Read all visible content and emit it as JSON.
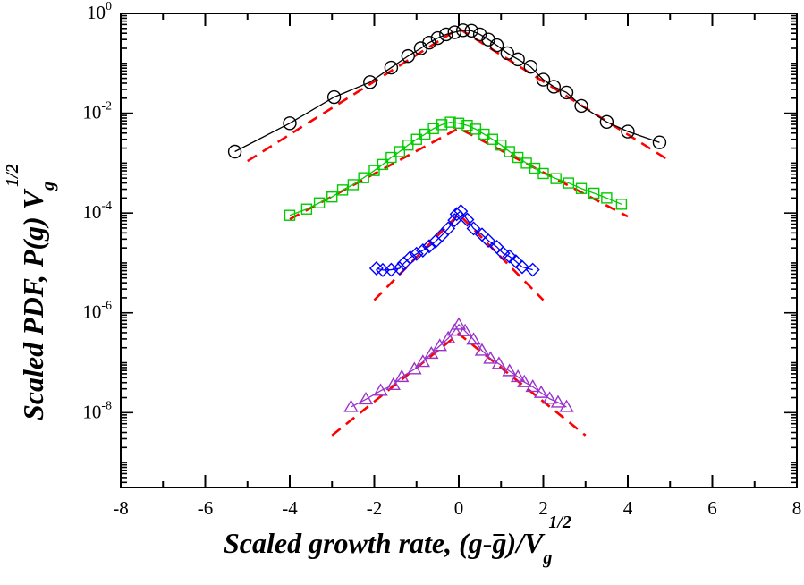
{
  "chart_data": {
    "type": "scatter",
    "title": "",
    "xlabel": {
      "main": "Scaled growth rate, (g-",
      "gbar": "g",
      "after": ")/V",
      "sub": "g",
      "sup": "1/2"
    },
    "ylabel": {
      "main": "Scaled PDF, P(g) V",
      "sub": "g",
      "sup": "1/2"
    },
    "xlim": [
      -8,
      8
    ],
    "ylim_log10": [
      -9.5,
      0
    ],
    "y_scale": "log",
    "x_ticks": [
      "-8",
      "-6",
      "-4",
      "-2",
      "0",
      "2",
      "4",
      "6",
      "8"
    ],
    "y_ticks": [
      {
        "base": "10",
        "exp": "0",
        "value": 0
      },
      {
        "base": "10",
        "exp": "-2",
        "value": -2
      },
      {
        "base": "10",
        "exp": "-4",
        "value": -4
      },
      {
        "base": "10",
        "exp": "-6",
        "value": -6
      },
      {
        "base": "10",
        "exp": "-8",
        "value": -8
      }
    ],
    "grid": false,
    "series": [
      {
        "marker": "circle",
        "color": "#000000",
        "connect": true,
        "points": [
          [
            -5.3,
            0.0017
          ],
          [
            -4.0,
            0.0063
          ],
          [
            -2.95,
            0.021
          ],
          [
            -2.1,
            0.042
          ],
          [
            -1.6,
            0.082
          ],
          [
            -1.2,
            0.14
          ],
          [
            -0.9,
            0.2
          ],
          [
            -0.7,
            0.26
          ],
          [
            -0.5,
            0.32
          ],
          [
            -0.3,
            0.38
          ],
          [
            -0.1,
            0.42
          ],
          [
            0.1,
            0.46
          ],
          [
            0.3,
            0.45
          ],
          [
            0.5,
            0.38
          ],
          [
            0.7,
            0.3
          ],
          [
            0.9,
            0.23
          ],
          [
            1.15,
            0.16
          ],
          [
            1.4,
            0.12
          ],
          [
            1.7,
            0.085
          ],
          [
            2.0,
            0.047
          ],
          [
            2.25,
            0.034
          ],
          [
            2.55,
            0.026
          ],
          [
            2.9,
            0.014
          ],
          [
            3.5,
            0.0067
          ],
          [
            4.0,
            0.0043
          ],
          [
            4.75,
            0.0026
          ]
        ]
      },
      {
        "marker": "square",
        "color": "#00cc00",
        "connect": true,
        "points": [
          [
            -4.0,
            9e-05
          ],
          [
            -3.6,
            0.00012
          ],
          [
            -3.3,
            0.00016
          ],
          [
            -3.0,
            0.00021
          ],
          [
            -2.75,
            0.00029
          ],
          [
            -2.5,
            0.00037
          ],
          [
            -2.25,
            0.00051
          ],
          [
            -2.0,
            0.00071
          ],
          [
            -1.8,
            0.00094
          ],
          [
            -1.6,
            0.0013
          ],
          [
            -1.4,
            0.0017
          ],
          [
            -1.2,
            0.0023
          ],
          [
            -1.0,
            0.003
          ],
          [
            -0.8,
            0.0038
          ],
          [
            -0.6,
            0.0049
          ],
          [
            -0.4,
            0.0059
          ],
          [
            -0.2,
            0.0066
          ],
          [
            0.0,
            0.0063
          ],
          [
            0.2,
            0.0057
          ],
          [
            0.4,
            0.0048
          ],
          [
            0.6,
            0.0038
          ],
          [
            0.8,
            0.003
          ],
          [
            1.0,
            0.0023
          ],
          [
            1.2,
            0.0017
          ],
          [
            1.4,
            0.0013
          ],
          [
            1.6,
            0.001
          ],
          [
            1.8,
            0.00079
          ],
          [
            2.0,
            0.00062
          ],
          [
            2.3,
            0.00049
          ],
          [
            2.6,
            0.0004
          ],
          [
            2.9,
            0.00031
          ],
          [
            3.2,
            0.00025
          ],
          [
            3.5,
            0.0002
          ],
          [
            3.85,
            0.00015
          ]
        ]
      },
      {
        "marker": "diamond",
        "color": "#0000ff",
        "connect": true,
        "points": [
          [
            -1.95,
            7.8e-06
          ],
          [
            -1.8,
            7.2e-06
          ],
          [
            -1.6,
            7.3e-06
          ],
          [
            -1.4,
            7.8e-06
          ],
          [
            -1.3,
            9.8e-06
          ],
          [
            -1.15,
            1.28e-05
          ],
          [
            -1.0,
            1.52e-05
          ],
          [
            -0.85,
            1.78e-05
          ],
          [
            -0.7,
            2.15e-05
          ],
          [
            -0.55,
            2.7e-05
          ],
          [
            -0.4,
            3.6e-05
          ],
          [
            -0.25,
            4.9e-05
          ],
          [
            -0.1,
            7.2e-05
          ],
          [
            -0.05,
            9.5e-05
          ],
          [
            0.05,
            0.000109
          ],
          [
            0.2,
            7.4e-05
          ],
          [
            0.35,
            4.9e-05
          ],
          [
            0.55,
            3.7e-05
          ],
          [
            0.7,
            2.8e-05
          ],
          [
            0.9,
            2.1e-05
          ],
          [
            1.05,
            1.56e-05
          ],
          [
            1.2,
            1.35e-05
          ],
          [
            1.35,
            1.08e-05
          ],
          [
            1.5,
            8.3e-06
          ],
          [
            1.75,
            7.3e-06
          ]
        ]
      },
      {
        "marker": "triangle",
        "color": "#9933cc",
        "connect": true,
        "points": [
          [
            -2.55,
            1.3e-08
          ],
          [
            -2.2,
            1.85e-08
          ],
          [
            -1.85,
            2.75e-08
          ],
          [
            -1.55,
            3.6e-08
          ],
          [
            -1.35,
            5.2e-08
          ],
          [
            -1.05,
            7.4e-08
          ],
          [
            -0.85,
            1.04e-07
          ],
          [
            -0.65,
            1.52e-07
          ],
          [
            -0.45,
            2.18e-07
          ],
          [
            -0.25,
            3.1e-07
          ],
          [
            -0.1,
            4.4e-07
          ],
          [
            0.0,
            5.8e-07
          ],
          [
            0.15,
            4.3e-07
          ],
          [
            0.35,
            2.9e-07
          ],
          [
            0.55,
            1.75e-07
          ],
          [
            0.75,
            1.21e-07
          ],
          [
            0.95,
            9.5e-08
          ],
          [
            1.2,
            6.8e-08
          ],
          [
            1.4,
            5.2e-08
          ],
          [
            1.55,
            4.1e-08
          ],
          [
            1.75,
            3.3e-08
          ],
          [
            1.95,
            2.5e-08
          ],
          [
            2.15,
            1.9e-08
          ],
          [
            2.35,
            1.6e-08
          ],
          [
            2.55,
            1.3e-08
          ]
        ]
      }
    ],
    "fit_lines": [
      {
        "color": "#ff0000",
        "style": "dashed",
        "points": [
          [
            -5.0,
            0.0011
          ],
          [
            0.0,
            0.5
          ],
          [
            5.0,
            0.0011
          ]
        ]
      },
      {
        "color": "#ff0000",
        "style": "dashed",
        "points": [
          [
            -4.0,
            7.5e-05
          ],
          [
            0.0,
            0.005
          ],
          [
            4.0,
            8.5e-05
          ]
        ]
      },
      {
        "color": "#ff0000",
        "style": "dashed",
        "points": [
          [
            -2.0,
            1.8e-06
          ],
          [
            0.0,
            9.5e-05
          ],
          [
            2.0,
            1.8e-06
          ]
        ]
      },
      {
        "color": "#ff0000",
        "style": "dashed",
        "points": [
          [
            -3.0,
            3.5e-09
          ],
          [
            0.0,
            3.8e-07
          ],
          [
            3.0,
            3.5e-09
          ]
        ]
      }
    ]
  }
}
